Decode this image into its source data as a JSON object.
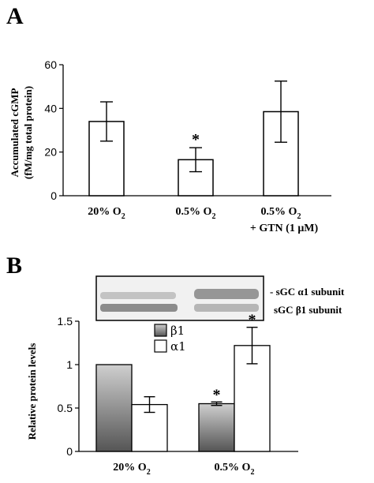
{
  "panels": {
    "a_letter": "A",
    "b_letter": "B"
  },
  "blot": {
    "labels": [
      {
        "prefix": "- sGC ",
        "greek": "α",
        "suffix": "1 subunit"
      },
      {
        "prefix": "sGC ",
        "greek": "β",
        "suffix": "1 subunit"
      }
    ]
  },
  "chart_data": [
    {
      "type": "bar",
      "title": "",
      "ylabel_line1": "Accumulated cGMP",
      "ylabel_line2": "(fM/mg total protein)",
      "ylim": [
        0,
        60
      ],
      "yticks": [
        "0",
        "20",
        "40",
        "60"
      ],
      "categories": [
        {
          "label": "20% O",
          "sub": "2",
          "line2": ""
        },
        {
          "label": "0.5% O",
          "sub": "2",
          "line2": ""
        },
        {
          "label": "0.5% O",
          "sub": "2",
          "line2": "+ GTN (1 μM)"
        }
      ],
      "values": [
        34,
        16.5,
        38.5
      ],
      "errors": [
        9,
        5.5,
        14
      ],
      "annotations": [
        "",
        "*",
        ""
      ],
      "bar_color": "#ffffff"
    },
    {
      "type": "bar",
      "ylabel": "Relative protein levels",
      "ylim": [
        0,
        1.5
      ],
      "yticks": [
        "0",
        "0.5",
        "1",
        "1.5"
      ],
      "categories": [
        {
          "label": "20% O",
          "sub": "2"
        },
        {
          "label": "0.5% O",
          "sub": "2"
        }
      ],
      "series": [
        {
          "name": "β1",
          "values": [
            1.0,
            0.55
          ],
          "errors": [
            0,
            0.02
          ],
          "annotations": [
            "",
            "*"
          ],
          "color": "gradient-gray"
        },
        {
          "name": "α1",
          "values": [
            0.54,
            1.22
          ],
          "errors": [
            0.09,
            0.21
          ],
          "annotations": [
            "",
            "*"
          ],
          "color": "#ffffff"
        }
      ],
      "legend": "top-center"
    }
  ]
}
